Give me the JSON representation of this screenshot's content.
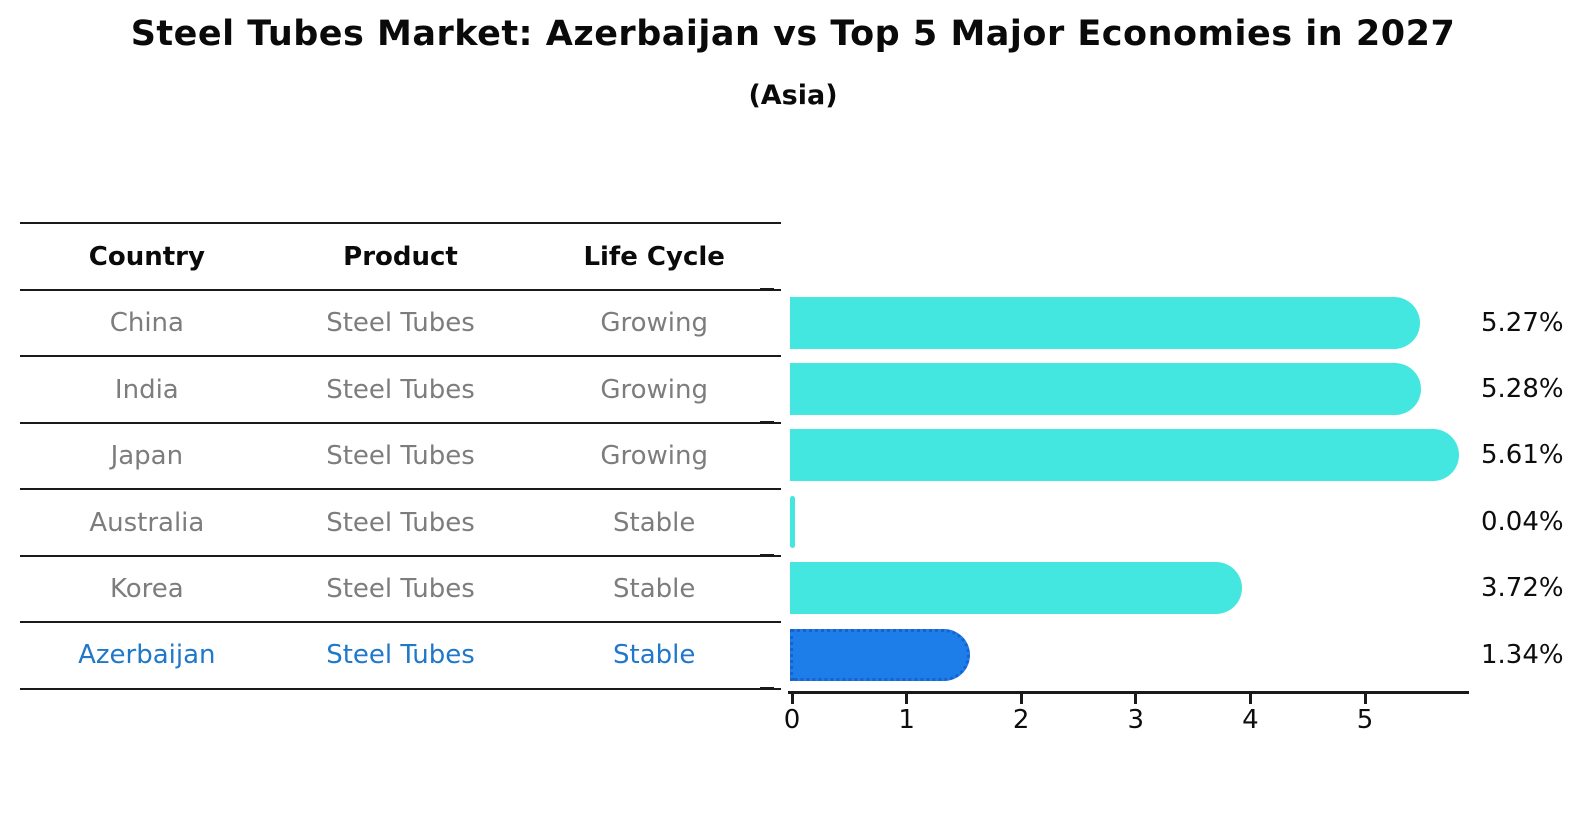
{
  "title": "Steel Tubes Market: Azerbaijan vs Top 5 Major Economies in 2027",
  "subtitle": "(Asia)",
  "table": {
    "columns": [
      "Country",
      "Product",
      "Life Cycle"
    ],
    "rows": [
      {
        "country": "China",
        "product": "Steel Tubes",
        "life_cycle": "Growing",
        "highlighted": false
      },
      {
        "country": "India",
        "product": "Steel Tubes",
        "life_cycle": "Growing",
        "highlighted": false
      },
      {
        "country": "Japan",
        "product": "Steel Tubes",
        "life_cycle": "Growing",
        "highlighted": false
      },
      {
        "country": "Australia",
        "product": "Steel Tubes",
        "life_cycle": "Stable",
        "highlighted": false
      },
      {
        "country": "Korea",
        "product": "Steel Tubes",
        "life_cycle": "Stable",
        "highlighted": false
      },
      {
        "country": "Azerbaijan",
        "product": "Steel Tubes",
        "life_cycle": "Stable",
        "highlighted": true
      }
    ]
  },
  "chart_data": {
    "type": "bar",
    "orientation": "horizontal",
    "title": "Steel Tubes Market: Azerbaijan vs Top 5 Major Economies in 2027",
    "subtitle": "(Asia)",
    "categories": [
      "China",
      "India",
      "Japan",
      "Australia",
      "Korea",
      "Azerbaijan"
    ],
    "values": [
      5.27,
      5.28,
      5.61,
      0.04,
      3.72,
      1.34
    ],
    "value_labels": [
      "5.27%",
      "5.28%",
      "5.61%",
      "0.04%",
      "3.72%",
      "1.34%"
    ],
    "x_ticks": [
      "0",
      "1",
      "2",
      "3",
      "4",
      "5"
    ],
    "xlim": [
      0,
      5.9
    ],
    "grid": false,
    "legend": false,
    "highlight_index": 5,
    "colors": {
      "bar": "#44E7DF",
      "highlight_bar": "#1D7DE9",
      "highlight_bar_border": "#1663CF",
      "highlight_text": "#1F78C9",
      "table_text": "#7D7D7D",
      "heading_text": "#0A0A0A",
      "axis": "#1A1A1A"
    }
  }
}
